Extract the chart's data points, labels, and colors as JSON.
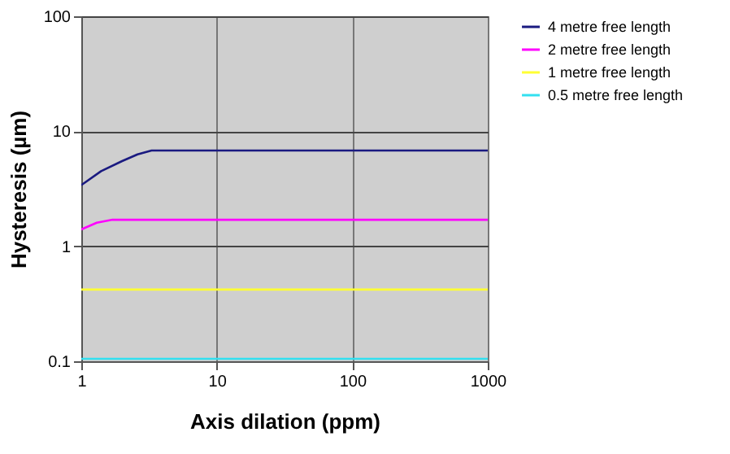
{
  "chart_data": {
    "type": "line",
    "xlabel": "Axis dilation (ppm)",
    "ylabel": "Hysteresis (µm)",
    "log": "xy",
    "xlim": [
      1,
      1000
    ],
    "ylim": [
      0.1,
      100
    ],
    "xticks": [
      1,
      10,
      100,
      1000
    ],
    "yticks": [
      0.1,
      1,
      10,
      100
    ],
    "grid": true,
    "legend": "right",
    "line_style": "solid",
    "marker": "none",
    "series": [
      {
        "name": "4 metre free length",
        "color": "#1a1a80",
        "x": [
          1,
          1.4,
          2,
          2.6,
          3.3,
          1000
        ],
        "values": [
          3.4,
          4.5,
          5.5,
          6.3,
          6.8,
          6.8
        ]
      },
      {
        "name": "2 metre free length",
        "color": "#ff00ff",
        "x": [
          1,
          1.3,
          1.7,
          1000
        ],
        "values": [
          1.4,
          1.6,
          1.7,
          1.7
        ]
      },
      {
        "name": "1 metre free length",
        "color": "#ffff33",
        "x": [
          1,
          1000
        ],
        "values": [
          0.42,
          0.42
        ]
      },
      {
        "name": "0.5 metre free length",
        "color": "#33e0f0",
        "x": [
          1,
          1000
        ],
        "values": [
          0.105,
          0.105
        ]
      }
    ]
  }
}
